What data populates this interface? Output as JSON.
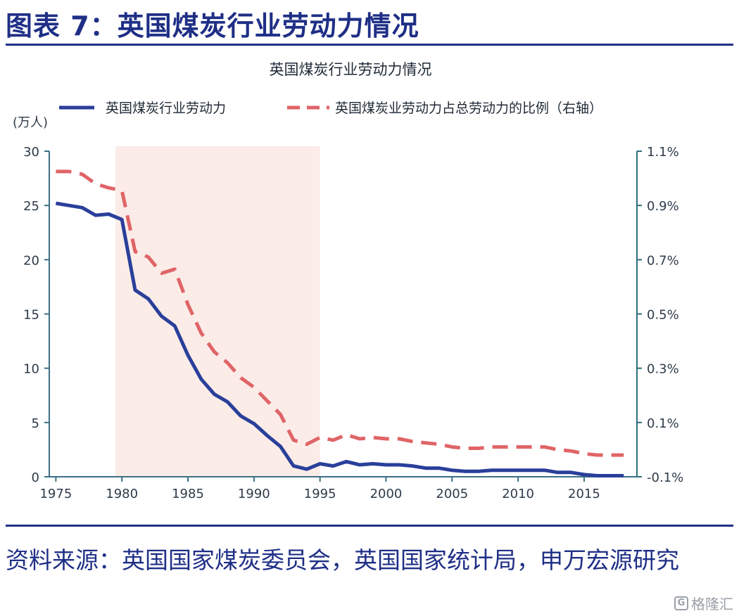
{
  "figure": {
    "title": "图表 7：英国煤炭行业劳动力情况",
    "source": "资料来源：英国国家煤炭委员会，英国国家统计局，申万宏源研究",
    "watermark": "格隆汇"
  },
  "colors": {
    "brand": "#1f2f86",
    "series_left": "#2a3f9a",
    "series_right": "#e06467",
    "shade": "#fbece8",
    "axis_right": "#2e6f7a"
  },
  "chart_data": {
    "type": "line",
    "title": "英国煤炭行业劳动力情况",
    "left_unit": "(万人)",
    "xlim": [
      1974.5,
      2019
    ],
    "ylim_left": [
      0,
      30
    ],
    "ylim_right": [
      -0.1,
      1.1
    ],
    "x_ticks": [
      1975,
      1980,
      1985,
      1990,
      1995,
      2000,
      2005,
      2010,
      2015
    ],
    "y_ticks_left": [
      0,
      5,
      10,
      15,
      20,
      25,
      30
    ],
    "y_ticks_right": [
      "-0.1%",
      "0.1%",
      "0.3%",
      "0.5%",
      "0.7%",
      "0.9%",
      "1.1%"
    ],
    "y_tick_values_right": [
      -0.1,
      0.1,
      0.3,
      0.5,
      0.7,
      0.9,
      1.1
    ],
    "shaded_range": [
      1979.5,
      1995
    ],
    "series": [
      {
        "name": "英国煤炭行业劳动力",
        "axis": "left",
        "style": "solid",
        "x": [
          1975,
          1976,
          1977,
          1978,
          1979,
          1980,
          1981,
          1982,
          1983,
          1984,
          1985,
          1986,
          1987,
          1988,
          1989,
          1990,
          1991,
          1992,
          1993,
          1994,
          1995,
          1996,
          1997,
          1998,
          1999,
          2000,
          2001,
          2002,
          2003,
          2004,
          2005,
          2006,
          2007,
          2008,
          2009,
          2010,
          2011,
          2012,
          2013,
          2014,
          2015,
          2016,
          2017,
          2018
        ],
        "values": [
          25.2,
          25.0,
          24.8,
          24.1,
          24.2,
          23.7,
          17.2,
          16.4,
          14.8,
          13.9,
          11.2,
          9.0,
          7.6,
          6.9,
          5.6,
          4.9,
          3.8,
          2.8,
          1.0,
          0.7,
          1.2,
          1.0,
          1.4,
          1.1,
          1.2,
          1.1,
          1.1,
          1.0,
          0.8,
          0.8,
          0.6,
          0.5,
          0.5,
          0.6,
          0.6,
          0.6,
          0.6,
          0.6,
          0.4,
          0.4,
          0.2,
          0.1,
          0.1,
          0.1
        ]
      },
      {
        "name": "英国煤炭业劳动力占总劳动力的比例（右轴）",
        "axis": "right",
        "style": "dashed",
        "x": [
          1975,
          1976,
          1977,
          1978,
          1979,
          1980,
          1981,
          1982,
          1983,
          1984,
          1985,
          1986,
          1987,
          1988,
          1989,
          1990,
          1991,
          1992,
          1993,
          1994,
          1995,
          1996,
          1997,
          1998,
          1999,
          2000,
          2001,
          2002,
          2003,
          2004,
          2005,
          2006,
          2007,
          2008,
          2009,
          2010,
          2011,
          2012,
          2013,
          2014,
          2015,
          2016,
          2017,
          2018
        ],
        "values": [
          1.025,
          1.025,
          1.015,
          0.98,
          0.965,
          0.955,
          0.73,
          0.71,
          0.65,
          0.665,
          0.535,
          0.43,
          0.36,
          0.32,
          0.265,
          0.23,
          0.18,
          0.13,
          0.035,
          0.02,
          0.045,
          0.035,
          0.055,
          0.04,
          0.045,
          0.04,
          0.04,
          0.03,
          0.025,
          0.02,
          0.01,
          0.005,
          0.005,
          0.01,
          0.01,
          0.01,
          0.01,
          0.01,
          0.0,
          -0.005,
          -0.015,
          -0.02,
          -0.02,
          -0.02
        ]
      }
    ]
  }
}
